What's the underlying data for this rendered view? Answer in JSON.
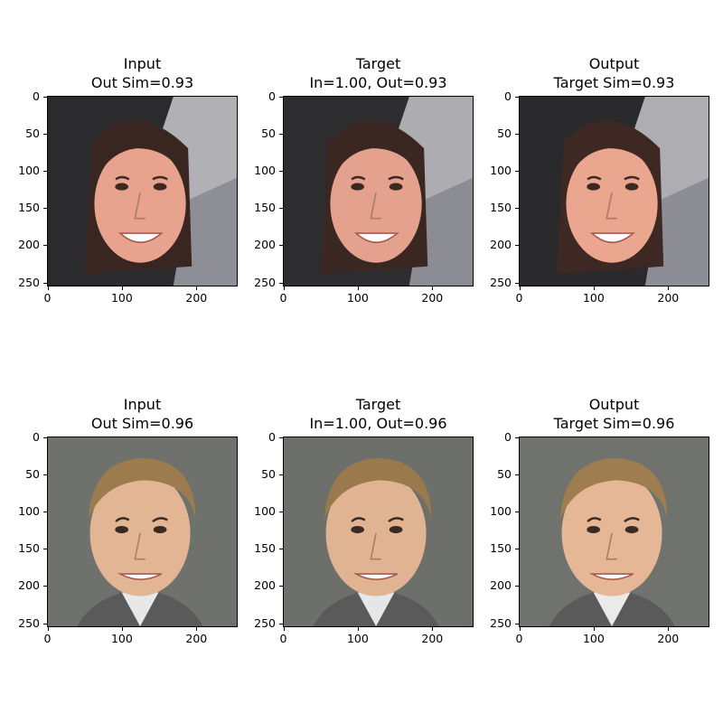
{
  "panels": [
    {
      "title_line1": "Input",
      "title_line2": "Out Sim=0.93",
      "bg": "#2b2b2e",
      "skin": "#e7a38e",
      "hair": "#3a2620",
      "accent": "#c8c8cc",
      "shirt": "#8e8e96"
    },
    {
      "title_line1": "Target",
      "title_line2": "In=1.00, Out=0.93",
      "bg": "#2d2c2f",
      "skin": "#e4a28e",
      "hair": "#3b2722",
      "accent": "#c4c4c8",
      "shirt": "#8c8c94"
    },
    {
      "title_line1": "Output",
      "title_line2": "Target Sim=0.93",
      "bg": "#2a2a2c",
      "skin": "#eaa68e",
      "hair": "#3d2823",
      "accent": "#c6c6ca",
      "shirt": "#8d8d95"
    },
    {
      "title_line1": "Input",
      "title_line2": "Out Sim=0.96",
      "bg": "#6e716c",
      "skin": "#e2b595",
      "hair": "#9c7c4e",
      "accent": "#6e716c",
      "shirt": "#e8e8e8"
    },
    {
      "title_line1": "Target",
      "title_line2": "In=1.00, Out=0.96",
      "bg": "#6c6f6a",
      "skin": "#e0b393",
      "hair": "#9a7a4c",
      "accent": "#6c6f6a",
      "shirt": "#e6e6e6"
    },
    {
      "title_line1": "Output",
      "title_line2": "Target Sim=0.96",
      "bg": "#6f726d",
      "skin": "#e5b797",
      "hair": "#9e7e50",
      "accent": "#6f726d",
      "shirt": "#eaeaea"
    }
  ],
  "axes": {
    "y_ticks": [
      "0",
      "50",
      "100",
      "150",
      "200",
      "250"
    ],
    "x_ticks": [
      "0",
      "100",
      "200"
    ]
  }
}
